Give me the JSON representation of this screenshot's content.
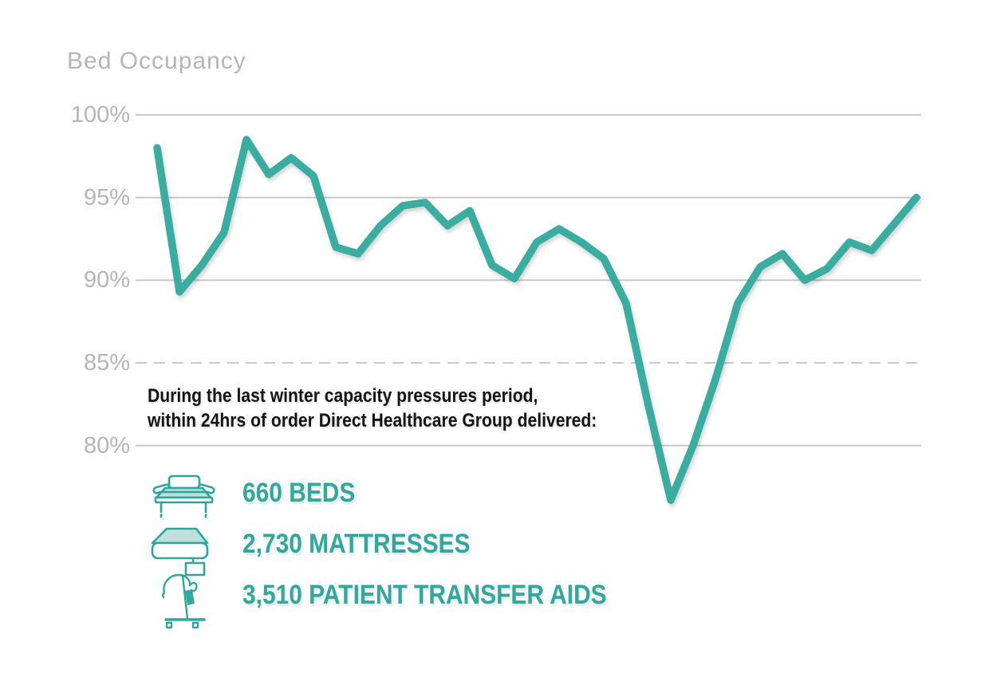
{
  "header": {
    "title": "Bed Occupancy"
  },
  "chart_data": {
    "type": "line",
    "title": "Bed Occupancy",
    "series_name": "Bed occupancy percentage over time",
    "yticks": [
      "100%",
      "95%",
      "90%",
      "85%",
      "80%"
    ],
    "ytick_values": [
      100,
      95,
      90,
      85,
      80
    ],
    "ylim": [
      76,
      100
    ],
    "grid": "horizontal gridlines; 85% gridline dashed, others solid",
    "legend": "none",
    "xlabel": "",
    "ylabel": "Bed Occupancy",
    "values": [
      98.0,
      89.3,
      90.9,
      92.9,
      98.5,
      96.4,
      97.4,
      96.3,
      92.0,
      91.6,
      93.3,
      94.5,
      94.7,
      93.3,
      94.2,
      90.9,
      90.1,
      92.3,
      93.1,
      92.3,
      91.3,
      88.6,
      82.4,
      76.7,
      80.0,
      84.0,
      88.6,
      90.8,
      91.6,
      90.0,
      90.7,
      92.3,
      91.8,
      93.4,
      95.0
    ],
    "line_color": "#3BACA0"
  },
  "annotation": {
    "line1": "During the last winter capacity pressures period,",
    "line2": "within 24hrs of order Direct Healthcare Group delivered:"
  },
  "stats": [
    {
      "icon": "bed-icon",
      "label": "660 BEDS"
    },
    {
      "icon": "mattress-icon",
      "label": "2,730 MATTRESSES"
    },
    {
      "icon": "patient-lift-icon",
      "label": "3,510 PATIENT TRANSFER AIDS"
    }
  ],
  "colors": {
    "teal_line": "#3BACA0",
    "teal_text": "#32A79E",
    "teal_icon_fill": "#BEDFDB",
    "grid": "#C8C8C8",
    "axis_text": "#B5B5B5",
    "body_text": "#141414"
  }
}
